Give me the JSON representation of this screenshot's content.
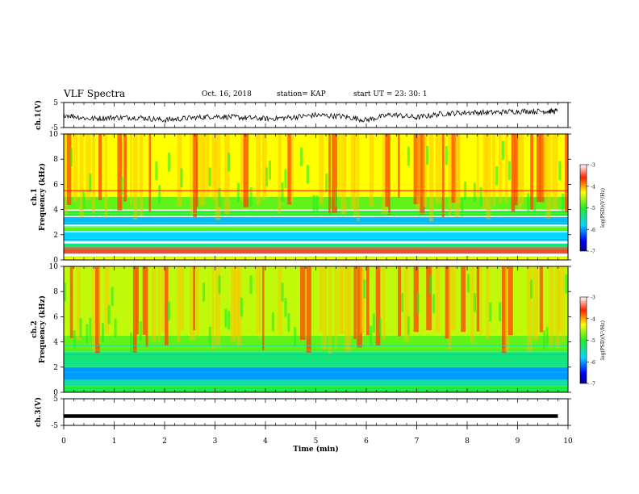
{
  "header": {
    "title": "VLF Spectra",
    "date": "Oct. 16, 2018",
    "station": "station= KAP",
    "start_time": "start UT =  23: 30: 1"
  },
  "colorbar": {
    "label": "log(PSD)(V²/Hz)",
    "ticks": [
      "-3",
      "-4",
      "-5",
      "-6",
      "-7"
    ]
  },
  "chart_data": [
    {
      "type": "line",
      "ylabel": "ch.1(V)",
      "ylim": [
        -5,
        5
      ],
      "y_tick_labels": [
        "5",
        "-5"
      ],
      "xlim": [
        0,
        10
      ],
      "series": [
        {
          "x": [
            0,
            0.5,
            1,
            1.5,
            2,
            2.5,
            3,
            3.5,
            4,
            4.5,
            5,
            5.5,
            6,
            6.5,
            7,
            7.5,
            8,
            8.5,
            9,
            9.5,
            9.8
          ],
          "values": [
            0.2,
            -1.5,
            -1.0,
            -1.0,
            -2.0,
            -1.2,
            -0.5,
            -1.0,
            -1.5,
            -1.0,
            0.0,
            -0.5,
            -2.0,
            0.2,
            -1.0,
            0.5,
            1.0,
            1.0,
            1.5,
            1.5,
            1.5
          ]
        }
      ]
    },
    {
      "type": "heatmap",
      "ylabel": "ch.1\nFrequency (kHz)",
      "ylim": [
        0,
        10
      ],
      "y_tick_labels": [
        "10",
        "8",
        "6",
        "4",
        "2",
        "0"
      ],
      "xlim": [
        0,
        10
      ],
      "z_range": [
        -7,
        -3
      ],
      "bands": [
        {
          "f": [
            0.0,
            0.3
          ],
          "psd": -4.3
        },
        {
          "f": [
            0.5,
            1.0
          ],
          "psd": -3.5
        },
        {
          "f": [
            1.0,
            1.3
          ],
          "psd": -5.3
        },
        {
          "f": [
            1.5,
            2.2
          ],
          "psd": -5.8
        },
        {
          "f": [
            2.3,
            2.6
          ],
          "psd": -4.8
        },
        {
          "f": [
            2.8,
            3.4
          ],
          "psd": -5.9
        },
        {
          "f": [
            3.5,
            3.9
          ],
          "psd": -5.1
        },
        {
          "f": [
            4.0,
            5.0
          ],
          "psd": -4.8
        },
        {
          "f": [
            5.0,
            10.0
          ],
          "psd": -4.3
        }
      ],
      "lines": [
        {
          "f": 5.5,
          "psd": -3.6
        }
      ]
    },
    {
      "type": "heatmap",
      "ylabel": "ch.2\nFrequency (kHz)",
      "ylim": [
        0,
        10
      ],
      "y_tick_labels": [
        "10",
        "8",
        "6",
        "4",
        "2",
        "0"
      ],
      "xlim": [
        0,
        10
      ],
      "z_range": [
        -7,
        -3
      ],
      "bands": [
        {
          "f": [
            0.0,
            0.5
          ],
          "psd": -5.0
        },
        {
          "f": [
            0.5,
            1.0
          ],
          "psd": -5.5
        },
        {
          "f": [
            1.0,
            2.0
          ],
          "psd": -6.0
        },
        {
          "f": [
            2.0,
            3.2
          ],
          "psd": -5.3
        },
        {
          "f": [
            3.2,
            4.5
          ],
          "psd": -4.8
        },
        {
          "f": [
            4.5,
            10.0
          ],
          "psd": -4.5
        }
      ],
      "lines": []
    },
    {
      "type": "line",
      "ylabel": "ch.3(V)",
      "xlabel": "Time (min)",
      "ylim": [
        -5,
        5
      ],
      "y_tick_labels": [
        "5",
        "-5"
      ],
      "xlim": [
        0,
        10
      ],
      "x_tick_labels": [
        "0",
        "1",
        "2",
        "3",
        "4",
        "5",
        "6",
        "7",
        "8",
        "9",
        "10"
      ],
      "series": [
        {
          "x": [
            0,
            9.8
          ],
          "values": [
            -1.5,
            -1.5
          ]
        }
      ]
    }
  ]
}
